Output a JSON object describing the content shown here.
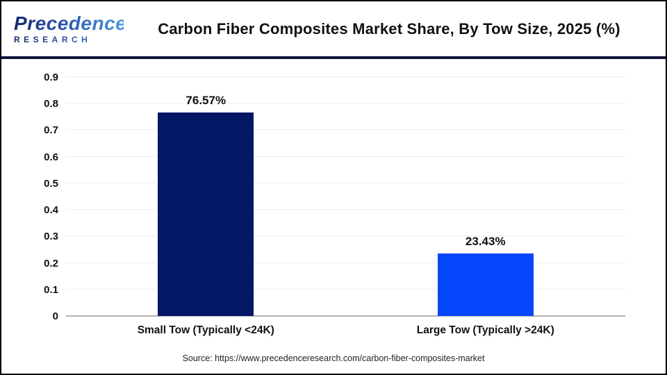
{
  "header": {
    "logo": {
      "word": "Precedence",
      "sub": "RESEARCH"
    },
    "title": "Carbon Fiber Composites Market Share, By Tow Size, 2025 (%)"
  },
  "chart_data": {
    "type": "bar",
    "title": "Carbon Fiber Composites Market Share, By Tow Size, 2025 (%)",
    "categories": [
      "Small Tow (Typically <24K)",
      "Large Tow (Typically >24K)"
    ],
    "values": [
      0.7657,
      0.2343
    ],
    "value_labels": [
      "76.57%",
      "23.43%"
    ],
    "bar_colors": [
      "#041766",
      "#0646fb"
    ],
    "xlabel": "",
    "ylabel": "",
    "ylim": [
      0,
      0.9
    ],
    "yticks": [
      0,
      0.1,
      0.2,
      0.3,
      0.4,
      0.5,
      0.6,
      0.7,
      0.8,
      0.9
    ],
    "ytick_labels": [
      "0",
      "0.1",
      "0.2",
      "0.3",
      "0.4",
      "0.5",
      "0.6",
      "0.7",
      "0.8",
      "0.9"
    ],
    "grid": "horizontal",
    "legend": "none"
  },
  "footer": {
    "source": "Source: https://www.precedenceresearch.com/carbon-fiber-composites-market"
  }
}
